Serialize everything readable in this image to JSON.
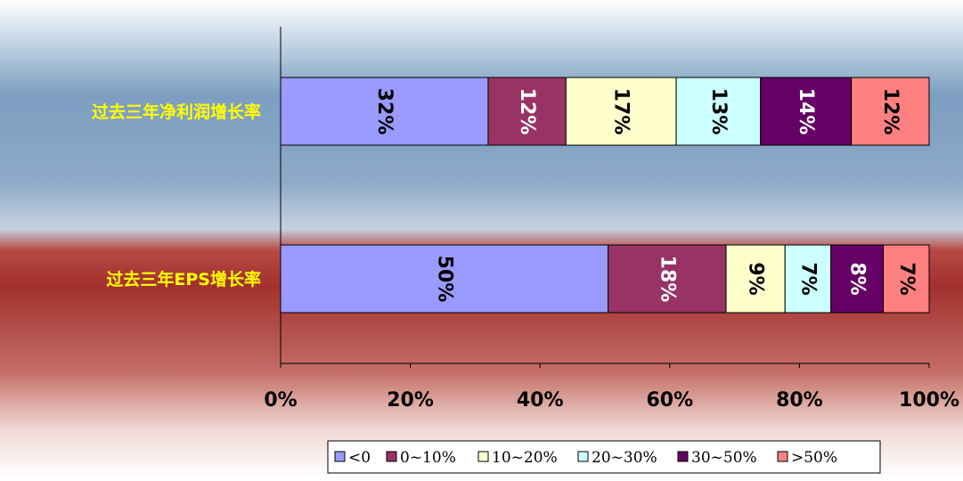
{
  "chart_data": {
    "type": "bar",
    "orientation": "horizontal",
    "stacked": "percent",
    "title": "",
    "xlabel": "",
    "ylabel": "",
    "xlim": [
      0,
      100
    ],
    "x_ticks": [
      "0%",
      "20%",
      "40%",
      "60%",
      "80%",
      "100%"
    ],
    "categories": [
      "过去三年净利润增长率",
      "过去三年EPS增长率"
    ],
    "series": [
      {
        "name": "<0",
        "values": [
          32,
          50
        ],
        "labels": [
          "32%",
          "50%"
        ],
        "color": "#9a9aff"
      },
      {
        "name": "0~10%",
        "values": [
          12,
          18
        ],
        "labels": [
          "12%",
          "18%"
        ],
        "color": "#993366"
      },
      {
        "name": "10~20%",
        "values": [
          17,
          9
        ],
        "labels": [
          "17%",
          "9%"
        ],
        "color": "#ffffcc"
      },
      {
        "name": "20~30%",
        "values": [
          13,
          7
        ],
        "labels": [
          "13%",
          "7%"
        ],
        "color": "#ccffff"
      },
      {
        "name": "30~50%",
        "values": [
          14,
          8
        ],
        "labels": [
          "14%",
          "8%"
        ],
        "color": "#660066"
      },
      {
        "name": ">50%",
        "values": [
          12,
          7
        ],
        "labels": [
          "12%",
          "7%"
        ],
        "color": "#ff8080"
      }
    ],
    "legend_position": "bottom-right",
    "grid": false,
    "colors": {
      "category_label": "#ffff00",
      "axis_tick_label": "#000000",
      "bg_top": "#ffffff",
      "bg_blue": "#7c9ec0",
      "bg_red": "#a23a36"
    }
  }
}
